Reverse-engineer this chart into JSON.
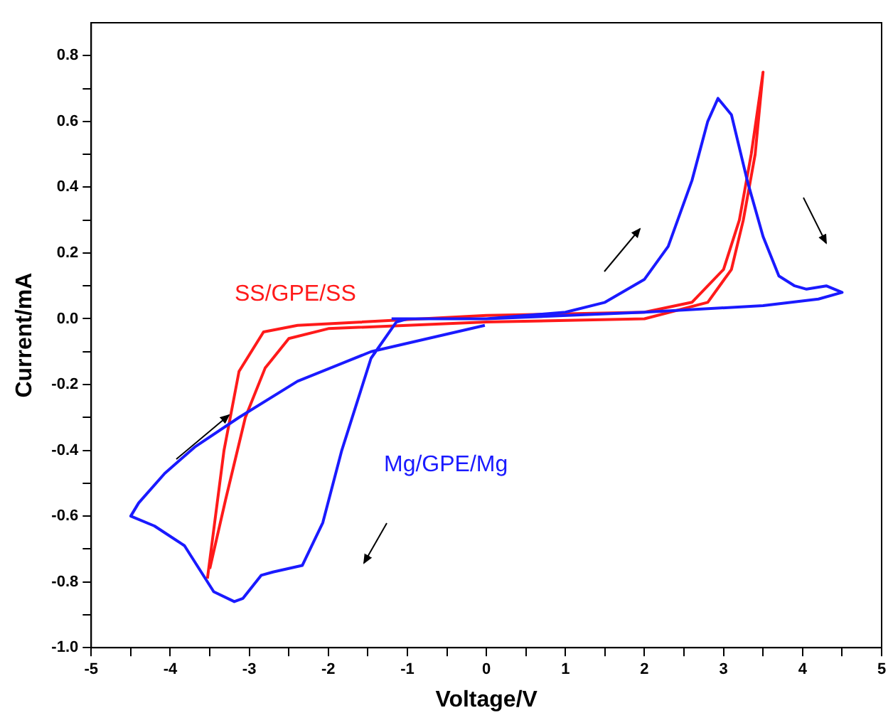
{
  "chart_data": {
    "type": "line",
    "xlabel": "Voltage/V",
    "ylabel": "Current/mA",
    "xlim": [
      -5,
      5
    ],
    "ylim": [
      -1.0,
      0.9
    ],
    "xticks": [
      -5,
      {
        "value": -4.5,
        "label": null
      },
      -4,
      {
        "value": -3.5,
        "label": null
      },
      -3,
      {
        "value": -2.5,
        "label": null
      },
      -2,
      {
        "value": -1.5,
        "label": null
      },
      -1,
      {
        "value": -0.5,
        "label": null
      },
      0,
      {
        "value": 0.5,
        "label": null
      },
      1,
      {
        "value": 1.5,
        "label": null
      },
      2,
      {
        "value": 2.5,
        "label": null
      },
      3,
      {
        "value": 3.5,
        "label": null
      },
      4,
      {
        "value": 4.5,
        "label": null
      },
      5
    ],
    "yticks": [
      {
        "value": -1,
        "label": "-1.0"
      },
      {
        "value": -0.9,
        "label": null
      },
      -0.8,
      {
        "value": -0.7,
        "label": null
      },
      -0.6,
      {
        "value": -0.5,
        "label": null
      },
      -0.4,
      {
        "value": -0.3,
        "label": null
      },
      -0.2,
      {
        "value": -0.1,
        "label": null
      },
      {
        "value": 0,
        "label": "0.0"
      },
      {
        "value": 0.1,
        "label": null
      },
      0.2,
      {
        "value": 0.3,
        "label": null
      },
      0.4,
      {
        "value": 0.5,
        "label": null
      },
      0.6,
      {
        "value": 0.7,
        "label": null
      },
      0.8
    ],
    "grid": false,
    "legend": false,
    "marker": "none",
    "line_style": "solid",
    "series": [
      {
        "name": "Mg/GPE/Mg",
        "color": "#1a1aff",
        "x": [
          -1.2,
          0,
          1,
          1.5,
          2,
          2.3,
          2.6,
          2.8,
          2.93,
          3.1,
          3.3,
          3.5,
          3.7,
          3.9,
          4.05,
          4.3,
          4.5,
          4.2,
          3.5,
          2,
          0,
          -1,
          -1.14,
          -1.46,
          -1.83,
          -2.07,
          -2.33,
          -2.7,
          -2.85,
          -3.08,
          -3.19,
          -3.45,
          -3.82,
          -4.2,
          -4.5,
          -4.4,
          -4.07,
          -3.69,
          -3.13,
          -2.39,
          -1.46,
          -0.02
        ],
        "values": [
          0.0,
          0.0,
          0.02,
          0.05,
          0.12,
          0.22,
          0.42,
          0.6,
          0.67,
          0.62,
          0.42,
          0.25,
          0.13,
          0.1,
          0.09,
          0.1,
          0.08,
          0.06,
          0.04,
          0.02,
          0.0,
          0.0,
          -0.01,
          -0.12,
          -0.4,
          -0.62,
          -0.75,
          -0.77,
          -0.78,
          -0.85,
          -0.86,
          -0.83,
          -0.69,
          -0.63,
          -0.6,
          -0.56,
          -0.47,
          -0.39,
          -0.3,
          -0.19,
          -0.1,
          -0.02
        ]
      },
      {
        "name": "SS/GPE/SS",
        "color": "#ff1a1a",
        "x": [
          -3.53,
          -3.32,
          -3.13,
          -2.82,
          -2.39,
          0,
          2,
          2.6,
          3.0,
          3.2,
          3.35,
          3.5,
          3.4,
          3.25,
          3.1,
          2.8,
          2,
          0,
          -2,
          -2.5,
          -2.8,
          -3.05,
          -3.3,
          -3.5
        ],
        "values": [
          -0.79,
          -0.4,
          -0.16,
          -0.04,
          -0.02,
          0.01,
          0.02,
          0.05,
          0.15,
          0.3,
          0.5,
          0.75,
          0.5,
          0.3,
          0.15,
          0.05,
          0.0,
          -0.01,
          -0.03,
          -0.06,
          -0.15,
          -0.3,
          -0.55,
          -0.76
        ]
      }
    ]
  }
}
